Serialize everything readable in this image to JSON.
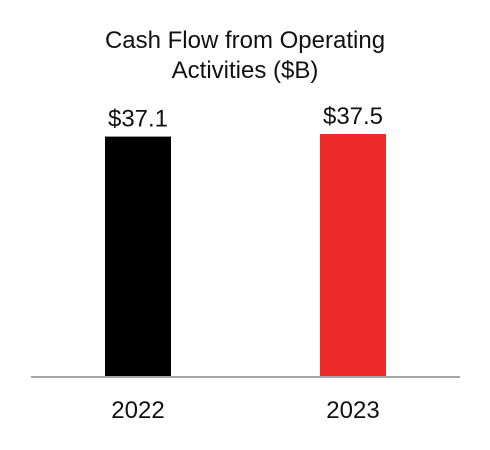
{
  "chart_data": {
    "type": "bar",
    "title_lines": [
      "Cash Flow from Operating",
      "Activities ($B)"
    ],
    "categories": [
      "2022",
      "2023"
    ],
    "values": [
      37.1,
      37.5
    ],
    "data_labels": [
      "$37.1",
      "$37.5"
    ],
    "colors": [
      "#000000",
      "#ee2a29"
    ],
    "axis_color": "#a6a6a6",
    "xlabel": "",
    "ylabel": "",
    "ylim": [
      0,
      37.5
    ],
    "grid": false,
    "legend": "none"
  }
}
